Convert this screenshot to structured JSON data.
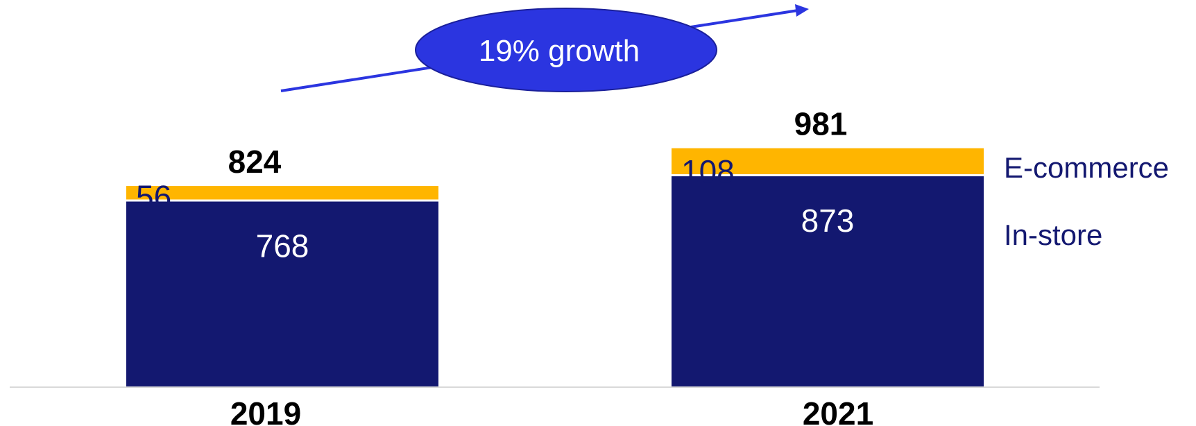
{
  "chart_data": {
    "type": "bar",
    "stacked": true,
    "categories": [
      "2019",
      "2021"
    ],
    "series": [
      {
        "name": "In-store",
        "values": [
          768,
          873
        ],
        "color": "#131870"
      },
      {
        "name": "E-commerce",
        "values": [
          56,
          108
        ],
        "color": "#FFB500"
      }
    ],
    "totals": [
      824,
      981
    ],
    "segment_labels": [
      [
        "768",
        "56"
      ],
      [
        "873",
        "108"
      ]
    ],
    "total_labels": [
      "824",
      "981"
    ],
    "annotation": {
      "text": "19% growth",
      "fill_color": "#2B35E0",
      "arrow_color": "#2B35E0"
    },
    "legend_placement": "right",
    "grid": false
  }
}
